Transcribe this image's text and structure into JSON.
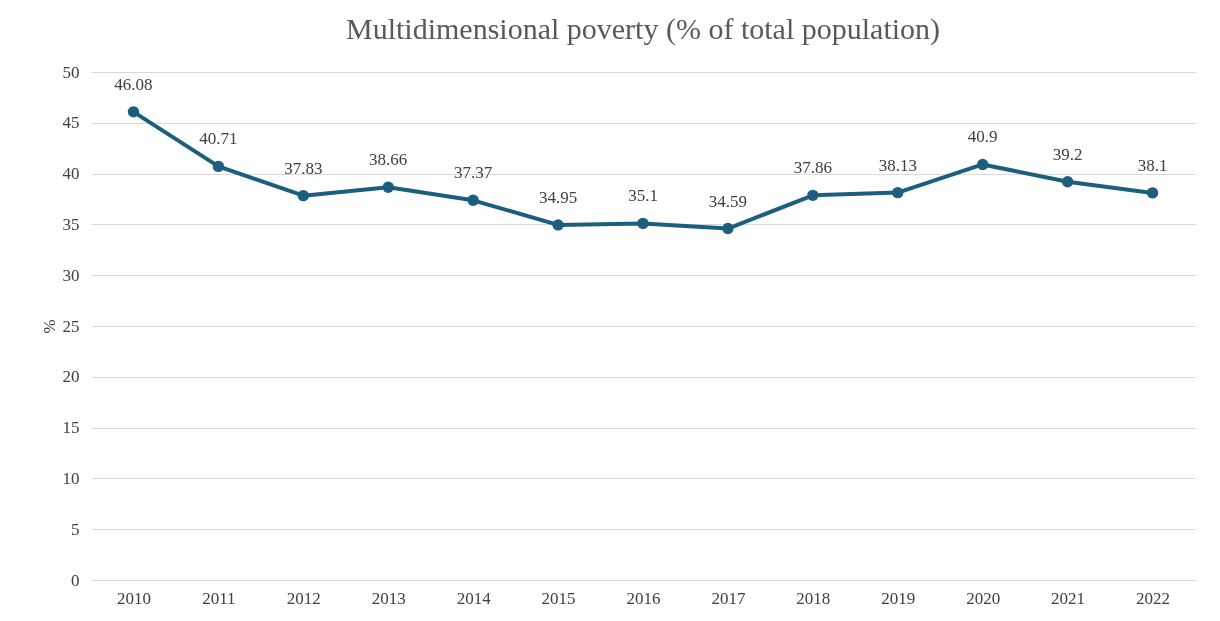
{
  "chart_data": {
    "type": "line",
    "title": "Multidimensional poverty (% of total population)",
    "ylabel": "%",
    "categories": [
      "2010",
      "2011",
      "2012",
      "2013",
      "2014",
      "2015",
      "2016",
      "2017",
      "2018",
      "2019",
      "2020",
      "2021",
      "2022"
    ],
    "series": [
      {
        "color": "#1b5e7e",
        "values": [
          46.08,
          40.71,
          37.83,
          38.66,
          37.37,
          34.95,
          35.1,
          34.59,
          37.86,
          38.13,
          40.9,
          39.2,
          38.1
        ]
      }
    ],
    "ylim": [
      0,
      50
    ],
    "yticks": [
      0,
      5,
      10,
      15,
      20,
      25,
      30,
      35,
      40,
      45,
      50
    ],
    "grid": "y",
    "legend": false,
    "marker": "circle",
    "line_style": "solid",
    "data_labels": true
  }
}
